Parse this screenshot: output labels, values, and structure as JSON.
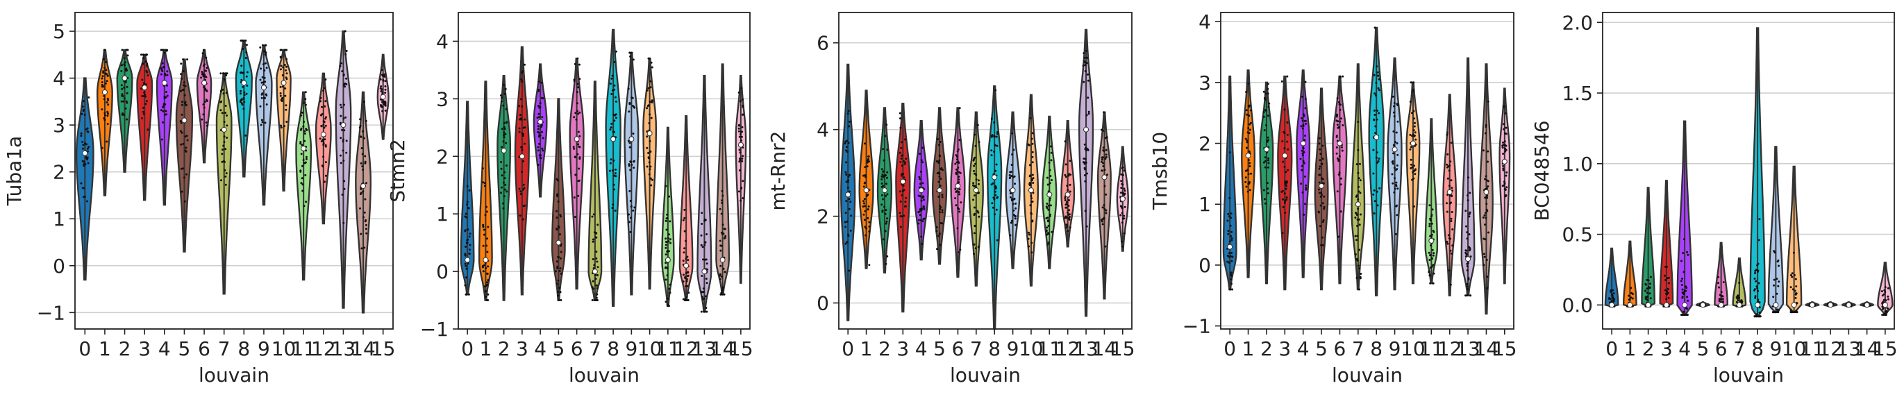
{
  "chart_data": [
    {
      "type": "violin",
      "ylabel": "Tuba1a",
      "xlabel": "louvain",
      "ylim": [
        -1.35,
        5.4
      ],
      "yticks": [
        -1,
        0,
        1,
        2,
        3,
        4,
        5
      ],
      "grid": "horizontal",
      "categories": [
        "0",
        "1",
        "2",
        "3",
        "4",
        "5",
        "6",
        "7",
        "8",
        "9",
        "10",
        "11",
        "12",
        "13",
        "14",
        "15"
      ],
      "series": [
        {
          "category": "0",
          "min": -0.3,
          "median": 2.4,
          "max": 4.0,
          "peak": 2.4,
          "width": 0.85
        },
        {
          "category": "1",
          "min": 1.5,
          "median": 3.7,
          "max": 4.6,
          "peak": 3.7,
          "width": 0.75
        },
        {
          "category": "2",
          "min": 2.0,
          "median": 4.0,
          "max": 4.6,
          "peak": 4.0,
          "width": 0.75
        },
        {
          "category": "3",
          "min": 1.4,
          "median": 3.8,
          "max": 4.5,
          "peak": 3.9,
          "width": 0.75
        },
        {
          "category": "4",
          "min": 1.3,
          "median": 3.9,
          "max": 4.6,
          "peak": 3.9,
          "width": 0.75
        },
        {
          "category": "5",
          "min": 0.3,
          "median": 3.1,
          "max": 4.4,
          "peak": 3.2,
          "width": 0.8
        },
        {
          "category": "6",
          "min": 2.2,
          "median": 3.9,
          "max": 4.6,
          "peak": 3.9,
          "width": 0.7
        },
        {
          "category": "7",
          "min": -0.6,
          "median": 2.9,
          "max": 4.1,
          "peak": 3.1,
          "width": 0.75
        },
        {
          "category": "8",
          "min": 1.9,
          "median": 3.9,
          "max": 4.8,
          "peak": 4.0,
          "width": 0.8
        },
        {
          "category": "9",
          "min": 1.3,
          "median": 3.8,
          "max": 4.7,
          "peak": 3.9,
          "width": 0.8
        },
        {
          "category": "10",
          "min": 1.6,
          "median": 3.9,
          "max": 4.6,
          "peak": 4.0,
          "width": 0.7
        },
        {
          "category": "11",
          "min": -0.3,
          "median": 2.5,
          "max": 3.7,
          "peak": 2.5,
          "width": 0.75
        },
        {
          "category": "12",
          "min": 0.9,
          "median": 2.8,
          "max": 4.1,
          "peak": 2.9,
          "width": 0.75
        },
        {
          "category": "13",
          "min": -0.9,
          "median": 3.0,
          "max": 5.0,
          "peak": 3.3,
          "width": 0.75
        },
        {
          "category": "14",
          "min": -1.0,
          "median": 1.7,
          "max": 3.7,
          "peak": 1.8,
          "width": 0.75
        },
        {
          "category": "15",
          "min": 2.7,
          "median": 3.6,
          "max": 4.5,
          "peak": 3.6,
          "width": 0.55
        }
      ]
    },
    {
      "type": "violin",
      "ylabel": "Stmn2",
      "xlabel": "louvain",
      "ylim": [
        -1.0,
        4.5
      ],
      "yticks": [
        -1,
        0,
        1,
        2,
        3,
        4
      ],
      "grid": "horizontal",
      "categories": [
        "0",
        "1",
        "2",
        "3",
        "4",
        "5",
        "6",
        "7",
        "8",
        "9",
        "10",
        "11",
        "12",
        "13",
        "14",
        "15"
      ],
      "series": [
        {
          "category": "0",
          "min": -0.4,
          "median": 0.2,
          "max": 2.95,
          "peak": 0.2,
          "width": 0.7
        },
        {
          "category": "1",
          "min": -0.5,
          "median": 0.2,
          "max": 3.3,
          "peak": 0.2,
          "width": 0.7
        },
        {
          "category": "2",
          "min": -0.5,
          "median": 2.1,
          "max": 3.4,
          "peak": 2.2,
          "width": 0.7
        },
        {
          "category": "3",
          "min": -0.4,
          "median": 2.0,
          "max": 3.9,
          "peak": 2.1,
          "width": 0.75
        },
        {
          "category": "4",
          "min": 1.3,
          "median": 2.6,
          "max": 3.6,
          "peak": 2.6,
          "width": 0.7
        },
        {
          "category": "5",
          "min": -0.5,
          "median": 0.5,
          "max": 3.0,
          "peak": 0.4,
          "width": 0.7
        },
        {
          "category": "6",
          "min": -0.3,
          "median": 2.3,
          "max": 3.7,
          "peak": 2.4,
          "width": 0.75
        },
        {
          "category": "7",
          "min": -0.5,
          "median": 0.0,
          "max": 3.3,
          "peak": 0.0,
          "width": 0.7
        },
        {
          "category": "8",
          "min": -0.6,
          "median": 2.3,
          "max": 4.2,
          "peak": 2.5,
          "width": 0.8
        },
        {
          "category": "9",
          "min": -0.4,
          "median": 2.3,
          "max": 3.8,
          "peak": 2.4,
          "width": 0.75
        },
        {
          "category": "10",
          "min": -0.3,
          "median": 2.4,
          "max": 3.7,
          "peak": 2.5,
          "width": 0.7
        },
        {
          "category": "11",
          "min": -0.6,
          "median": 0.2,
          "max": 2.5,
          "peak": 0.2,
          "width": 0.65
        },
        {
          "category": "12",
          "min": -0.5,
          "median": 0.1,
          "max": 2.7,
          "peak": 0.1,
          "width": 0.7
        },
        {
          "category": "13",
          "min": -0.7,
          "median": 0.0,
          "max": 3.4,
          "peak": 0.0,
          "width": 0.75
        },
        {
          "category": "14",
          "min": -0.4,
          "median": 0.2,
          "max": 3.6,
          "peak": 0.2,
          "width": 0.7
        },
        {
          "category": "15",
          "min": -0.2,
          "median": 2.2,
          "max": 3.4,
          "peak": 2.3,
          "width": 0.55
        }
      ]
    },
    {
      "type": "violin",
      "ylabel": "mt-Rnr2",
      "xlabel": "louvain",
      "ylim": [
        -0.6,
        6.7
      ],
      "yticks": [
        0,
        2,
        4,
        6
      ],
      "grid": "horizontal",
      "categories": [
        "0",
        "1",
        "2",
        "3",
        "4",
        "5",
        "6",
        "7",
        "8",
        "9",
        "10",
        "11",
        "12",
        "13",
        "14",
        "15"
      ],
      "series": [
        {
          "category": "0",
          "min": -0.4,
          "median": 2.5,
          "max": 5.5,
          "peak": 2.5,
          "width": 0.75
        },
        {
          "category": "1",
          "min": 0.8,
          "median": 2.6,
          "max": 4.9,
          "peak": 2.6,
          "width": 0.75
        },
        {
          "category": "2",
          "min": 0.7,
          "median": 2.6,
          "max": 4.5,
          "peak": 2.6,
          "width": 0.75
        },
        {
          "category": "3",
          "min": -0.2,
          "median": 2.8,
          "max": 4.6,
          "peak": 2.8,
          "width": 0.75
        },
        {
          "category": "4",
          "min": 1.0,
          "median": 2.6,
          "max": 4.2,
          "peak": 2.6,
          "width": 0.75
        },
        {
          "category": "5",
          "min": 0.9,
          "median": 2.6,
          "max": 4.5,
          "peak": 2.6,
          "width": 0.75
        },
        {
          "category": "6",
          "min": 0.6,
          "median": 2.7,
          "max": 4.5,
          "peak": 2.7,
          "width": 0.75
        },
        {
          "category": "7",
          "min": 0.4,
          "median": 2.6,
          "max": 4.4,
          "peak": 2.6,
          "width": 0.75
        },
        {
          "category": "8",
          "min": -0.6,
          "median": 2.9,
          "max": 5.0,
          "peak": 3.0,
          "width": 0.75
        },
        {
          "category": "9",
          "min": 0.8,
          "median": 2.6,
          "max": 4.4,
          "peak": 2.6,
          "width": 0.75
        },
        {
          "category": "10",
          "min": 0.4,
          "median": 2.6,
          "max": 4.8,
          "peak": 2.6,
          "width": 0.75
        },
        {
          "category": "11",
          "min": 0.8,
          "median": 2.5,
          "max": 4.3,
          "peak": 2.5,
          "width": 0.75
        },
        {
          "category": "12",
          "min": 1.3,
          "median": 2.5,
          "max": 4.2,
          "peak": 2.5,
          "width": 0.7
        },
        {
          "category": "13",
          "min": -0.3,
          "median": 4.0,
          "max": 6.3,
          "peak": 4.1,
          "width": 0.75
        },
        {
          "category": "14",
          "min": 0.1,
          "median": 2.9,
          "max": 4.4,
          "peak": 2.9,
          "width": 0.7
        },
        {
          "category": "15",
          "min": 1.2,
          "median": 2.4,
          "max": 3.6,
          "peak": 2.4,
          "width": 0.6
        }
      ]
    },
    {
      "type": "violin",
      "ylabel": "Tmsb10",
      "xlabel": "louvain",
      "ylim": [
        -1.05,
        4.15
      ],
      "yticks": [
        -1,
        0,
        1,
        2,
        3,
        4
      ],
      "grid": "horizontal",
      "categories": [
        "0",
        "1",
        "2",
        "3",
        "4",
        "5",
        "6",
        "7",
        "8",
        "9",
        "10",
        "11",
        "12",
        "13",
        "14",
        "15"
      ],
      "series": [
        {
          "category": "0",
          "min": -0.4,
          "median": 0.3,
          "max": 3.1,
          "peak": 0.2,
          "width": 0.7
        },
        {
          "category": "1",
          "min": -0.2,
          "median": 1.8,
          "max": 3.2,
          "peak": 1.8,
          "width": 0.7
        },
        {
          "category": "2",
          "min": -0.3,
          "median": 1.9,
          "max": 3.0,
          "peak": 1.9,
          "width": 0.7
        },
        {
          "category": "3",
          "min": -0.4,
          "median": 1.8,
          "max": 3.1,
          "peak": 1.8,
          "width": 0.75
        },
        {
          "category": "4",
          "min": -0.2,
          "median": 2.0,
          "max": 3.2,
          "peak": 2.0,
          "width": 0.7
        },
        {
          "category": "5",
          "min": -0.4,
          "median": 1.3,
          "max": 2.9,
          "peak": 1.2,
          "width": 0.7
        },
        {
          "category": "6",
          "min": -0.3,
          "median": 2.0,
          "max": 3.1,
          "peak": 2.0,
          "width": 0.75
        },
        {
          "category": "7",
          "min": -0.4,
          "median": 1.0,
          "max": 3.3,
          "peak": 0.9,
          "width": 0.7
        },
        {
          "category": "8",
          "min": -0.5,
          "median": 2.1,
          "max": 3.9,
          "peak": 2.2,
          "width": 0.8
        },
        {
          "category": "9",
          "min": -0.4,
          "median": 1.9,
          "max": 3.4,
          "peak": 1.9,
          "width": 0.75
        },
        {
          "category": "10",
          "min": -0.3,
          "median": 2.0,
          "max": 3.0,
          "peak": 2.0,
          "width": 0.7
        },
        {
          "category": "11",
          "min": -0.3,
          "median": 0.4,
          "max": 2.4,
          "peak": 0.3,
          "width": 0.65
        },
        {
          "category": "12",
          "min": -0.5,
          "median": 1.2,
          "max": 2.8,
          "peak": 1.1,
          "width": 0.7
        },
        {
          "category": "13",
          "min": -0.5,
          "median": 0.1,
          "max": 3.4,
          "peak": 0.1,
          "width": 0.7
        },
        {
          "category": "14",
          "min": -0.8,
          "median": 1.2,
          "max": 3.3,
          "peak": 1.0,
          "width": 0.7
        },
        {
          "category": "15",
          "min": -0.3,
          "median": 1.7,
          "max": 2.9,
          "peak": 1.8,
          "width": 0.55
        }
      ]
    },
    {
      "type": "violin",
      "ylabel": "BC048546",
      "xlabel": "louvain",
      "ylim": [
        -0.17,
        2.07
      ],
      "yticks": [
        0.0,
        0.5,
        1.0,
        1.5,
        2.0
      ],
      "ytick_labels": [
        "0.0",
        "0.5",
        "1.0",
        "1.5",
        "2.0"
      ],
      "grid": "horizontal",
      "categories": [
        "0",
        "1",
        "2",
        "3",
        "4",
        "5",
        "6",
        "7",
        "8",
        "9",
        "10",
        "11",
        "12",
        "13",
        "14",
        "15"
      ],
      "series": [
        {
          "category": "0",
          "min": -0.01,
          "median": 0.0,
          "max": 0.4,
          "peak": 0.0,
          "width": 0.7
        },
        {
          "category": "1",
          "min": -0.01,
          "median": 0.0,
          "max": 0.45,
          "peak": 0.0,
          "width": 0.7
        },
        {
          "category": "2",
          "min": -0.01,
          "median": 0.0,
          "max": 0.83,
          "peak": 0.0,
          "width": 0.7
        },
        {
          "category": "3",
          "min": -0.01,
          "median": 0.0,
          "max": 0.88,
          "peak": 0.0,
          "width": 0.7
        },
        {
          "category": "4",
          "min": -0.07,
          "median": 0.0,
          "max": 1.3,
          "peak": 0.0,
          "width": 0.8
        },
        {
          "category": "5",
          "min": -0.01,
          "median": 0.0,
          "max": 0.02,
          "peak": 0.0,
          "width": 0.7
        },
        {
          "category": "6",
          "min": -0.01,
          "median": 0.0,
          "max": 0.44,
          "peak": 0.0,
          "width": 0.7
        },
        {
          "category": "7",
          "min": -0.01,
          "median": 0.0,
          "max": 0.33,
          "peak": 0.0,
          "width": 0.7
        },
        {
          "category": "8",
          "min": -0.08,
          "median": 0.0,
          "max": 1.96,
          "peak": 0.0,
          "width": 0.8
        },
        {
          "category": "9",
          "min": -0.05,
          "median": 0.0,
          "max": 1.12,
          "peak": 0.0,
          "width": 0.8
        },
        {
          "category": "10",
          "min": -0.05,
          "median": 0.0,
          "max": 0.98,
          "peak": 0.0,
          "width": 0.8
        },
        {
          "category": "11",
          "min": -0.01,
          "median": 0.0,
          "max": 0.02,
          "peak": 0.0,
          "width": 0.7
        },
        {
          "category": "12",
          "min": -0.01,
          "median": 0.0,
          "max": 0.02,
          "peak": 0.0,
          "width": 0.7
        },
        {
          "category": "13",
          "min": -0.01,
          "median": 0.0,
          "max": 0.02,
          "peak": 0.0,
          "width": 0.7
        },
        {
          "category": "14",
          "min": -0.01,
          "median": 0.0,
          "max": 0.02,
          "peak": 0.0,
          "width": 0.7
        },
        {
          "category": "15",
          "min": -0.07,
          "median": 0.0,
          "max": 0.3,
          "peak": 0.0,
          "width": 0.8
        }
      ]
    }
  ],
  "colors": [
    "#1f77b4",
    "#ff7f0e",
    "#279e68",
    "#d62728",
    "#aa40fc",
    "#8c564b",
    "#e377c2",
    "#b5bd61",
    "#17becf",
    "#aec7e8",
    "#ffbb78",
    "#98df8a",
    "#ff9896",
    "#c5b0d5",
    "#c49c94",
    "#f7b6d2"
  ]
}
